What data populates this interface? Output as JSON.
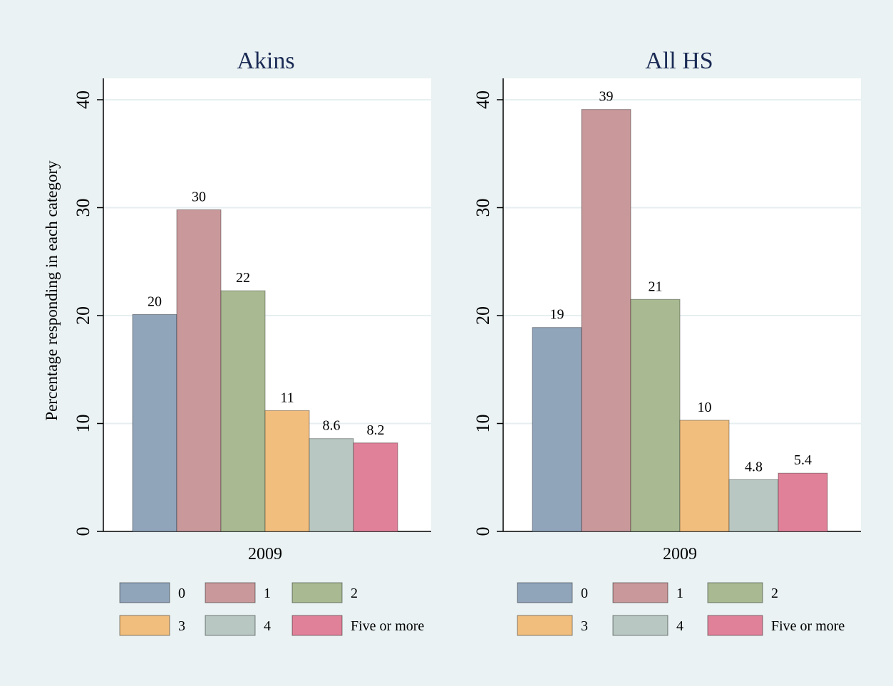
{
  "chart_data": [
    {
      "type": "bar",
      "title": "Akins",
      "ylabel": "Percentage responding in each category",
      "xlabel": "",
      "categories": [
        "2009"
      ],
      "ylim": [
        0,
        40
      ],
      "yticks": [
        0,
        10,
        20,
        30,
        40
      ],
      "grid": true,
      "legend_position": "bottom",
      "series": [
        {
          "name": "0",
          "values": [
            20.1
          ],
          "label": "20",
          "color": "#90a4ba"
        },
        {
          "name": "1",
          "values": [
            29.8
          ],
          "label": "30",
          "color": "#c8989b"
        },
        {
          "name": "2",
          "values": [
            22.3
          ],
          "label": "22",
          "color": "#a9ba92"
        },
        {
          "name": "3",
          "values": [
            11.2
          ],
          "label": "11",
          "color": "#f1be7e"
        },
        {
          "name": "4",
          "values": [
            8.6
          ],
          "label": "8.6",
          "color": "#b8c7c1"
        },
        {
          "name": "Five or more",
          "values": [
            8.2
          ],
          "label": "8.2",
          "color": "#e08199"
        }
      ]
    },
    {
      "type": "bar",
      "title": "All HS",
      "ylabel": "",
      "xlabel": "",
      "categories": [
        "2009"
      ],
      "ylim": [
        0,
        40
      ],
      "yticks": [
        0,
        10,
        20,
        30,
        40
      ],
      "grid": true,
      "legend_position": "bottom",
      "series": [
        {
          "name": "0",
          "values": [
            18.9
          ],
          "label": "19",
          "color": "#90a4ba"
        },
        {
          "name": "1",
          "values": [
            39.1
          ],
          "label": "39",
          "color": "#c8989b"
        },
        {
          "name": "2",
          "values": [
            21.5
          ],
          "label": "21",
          "color": "#a9ba92"
        },
        {
          "name": "3",
          "values": [
            10.3
          ],
          "label": "10",
          "color": "#f1be7e"
        },
        {
          "name": "4",
          "values": [
            4.8
          ],
          "label": "4.8",
          "color": "#b8c7c1"
        },
        {
          "name": "Five or more",
          "values": [
            5.4
          ],
          "label": "5.4",
          "color": "#e08199"
        }
      ]
    }
  ]
}
